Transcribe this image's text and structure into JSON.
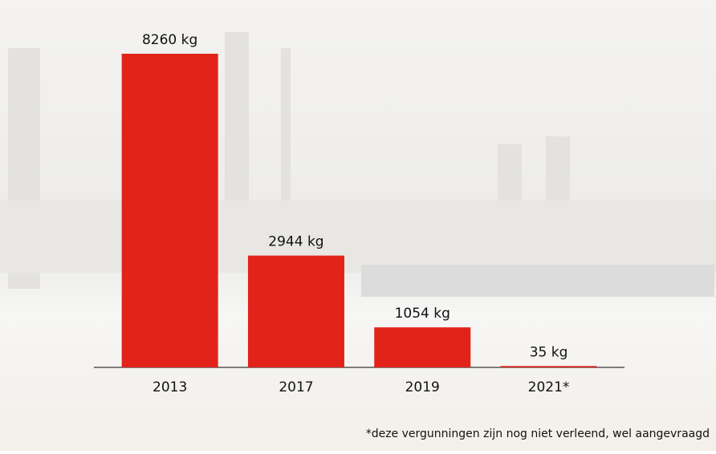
{
  "chart_data": {
    "type": "bar",
    "categories": [
      "2013",
      "2017",
      "2019",
      "2021*"
    ],
    "values": [
      8260,
      2944,
      1054,
      35
    ],
    "value_labels": [
      "8260 kg",
      "2944 kg",
      "1054 kg",
      "35 kg"
    ],
    "color": "#e2231a",
    "footnote": "*deze vergunningen zijn nog niet verleend, wel aangevraagd"
  }
}
